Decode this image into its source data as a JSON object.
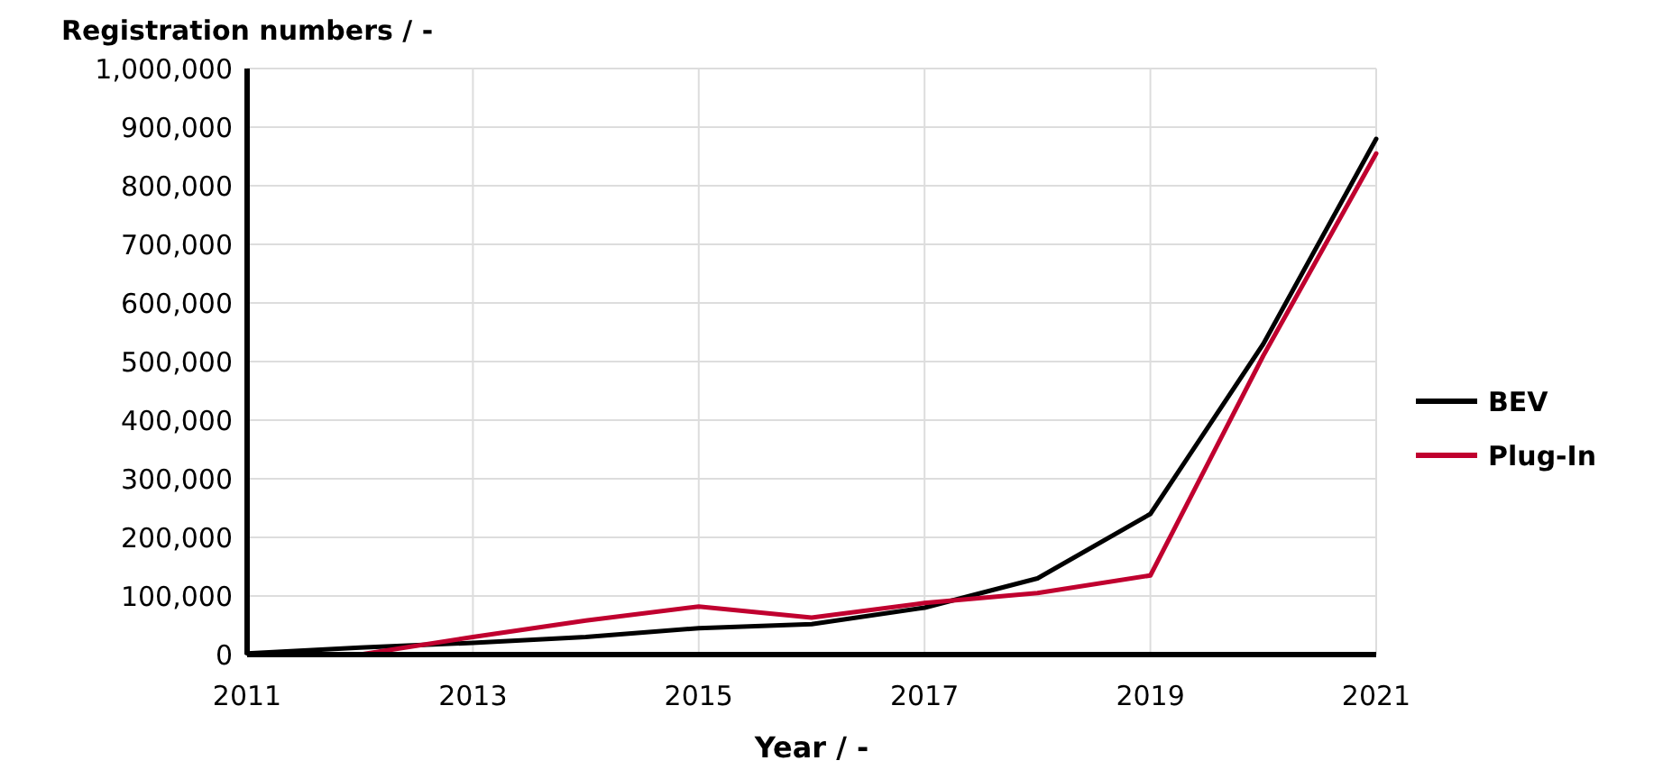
{
  "chart_data": {
    "type": "line",
    "ylabel": "Registration numbers / -",
    "xlabel": "Year / -",
    "x": [
      2011,
      2012,
      2013,
      2014,
      2015,
      2016,
      2017,
      2018,
      2019,
      2020,
      2021
    ],
    "series": [
      {
        "name": "BEV",
        "color": "#000000",
        "values": [
          2000,
          12000,
          20000,
          30000,
          45000,
          52000,
          80000,
          130000,
          240000,
          530000,
          880000
        ]
      },
      {
        "name": "Plug-In",
        "color": "#c0002f",
        "values": [
          null,
          0,
          30000,
          58000,
          82000,
          63000,
          88000,
          105000,
          135000,
          510000,
          855000
        ]
      }
    ],
    "xlim": [
      2011,
      2021
    ],
    "xticks": [
      2011,
      2013,
      2015,
      2017,
      2019,
      2021
    ],
    "ylim": [
      0,
      1000000
    ],
    "yticks": [
      {
        "value": 0,
        "label": "0"
      },
      {
        "value": 100000,
        "label": "100,000"
      },
      {
        "value": 200000,
        "label": "200,000"
      },
      {
        "value": 300000,
        "label": "300,000"
      },
      {
        "value": 400000,
        "label": "400,000"
      },
      {
        "value": 500000,
        "label": "500,000"
      },
      {
        "value": 600000,
        "label": "600,000"
      },
      {
        "value": 700000,
        "label": "700,000"
      },
      {
        "value": 800000,
        "label": "800,000"
      },
      {
        "value": 900000,
        "label": "900,000"
      },
      {
        "value": 1000000,
        "label": "1,000,000"
      }
    ],
    "grid": true,
    "legend": "right",
    "marker": "none",
    "line_style": "solid"
  }
}
